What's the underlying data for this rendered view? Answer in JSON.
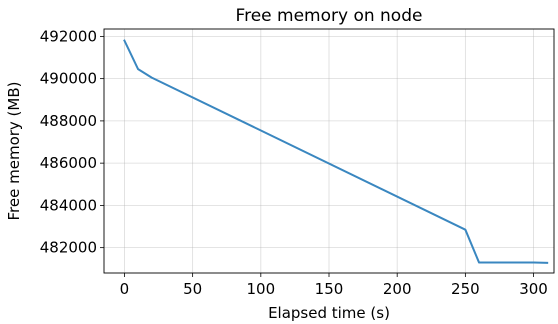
{
  "chart_data": {
    "type": "line",
    "title": "Free memory on node",
    "xlabel": "Elapsed time (s)",
    "ylabel": "Free memory (MB)",
    "xlim": [
      -15,
      315
    ],
    "ylim": [
      480800,
      492350
    ],
    "xticks": [
      0,
      50,
      100,
      150,
      200,
      250,
      300
    ],
    "yticks": [
      482000,
      484000,
      486000,
      488000,
      490000,
      492000
    ],
    "grid": true,
    "legend": "none",
    "series": [
      {
        "color": "#3a87c0",
        "x": [
          0,
          10,
          20,
          250,
          260,
          270,
          280,
          290,
          300,
          310
        ],
        "y": [
          491800,
          490450,
          490050,
          482850,
          481300,
          481300,
          481300,
          481300,
          481300,
          481280
        ]
      }
    ]
  }
}
